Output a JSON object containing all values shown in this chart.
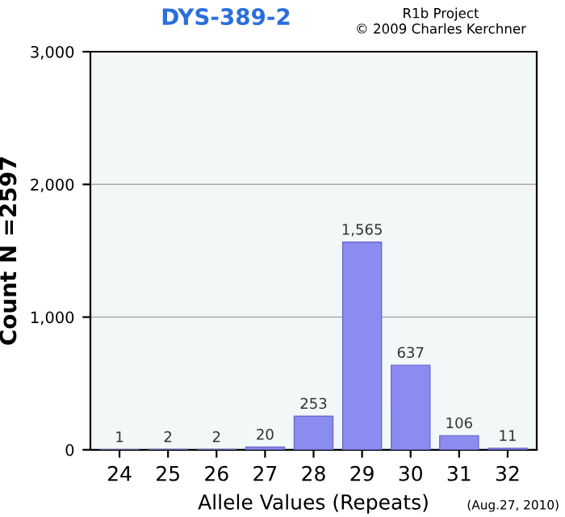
{
  "chart_data": {
    "type": "bar",
    "title": "DYS-389-2",
    "xlabel": "Allele Values (Repeats)",
    "ylabel": "Count N =2597",
    "categories": [
      "24",
      "25",
      "26",
      "27",
      "28",
      "29",
      "30",
      "31",
      "32"
    ],
    "values": [
      1,
      2,
      2,
      20,
      253,
      1565,
      637,
      106,
      11
    ],
    "color": "#8c8cf0",
    "ylim": [
      0,
      3000
    ],
    "yticks": [
      0,
      {
        "value": 1000,
        "label": "1,000"
      },
      {
        "value": 2000,
        "label": "2,000"
      },
      {
        "value": 3000,
        "label": "3,000"
      }
    ],
    "grid": "y",
    "value_labels": [
      "1",
      "2",
      "2",
      "20",
      "253",
      "1,565",
      "637",
      "106",
      "11"
    ],
    "annotations": [
      "R1b Project",
      "© 2009 Charles Kerchner",
      "(Aug.27, 2010)"
    ]
  }
}
